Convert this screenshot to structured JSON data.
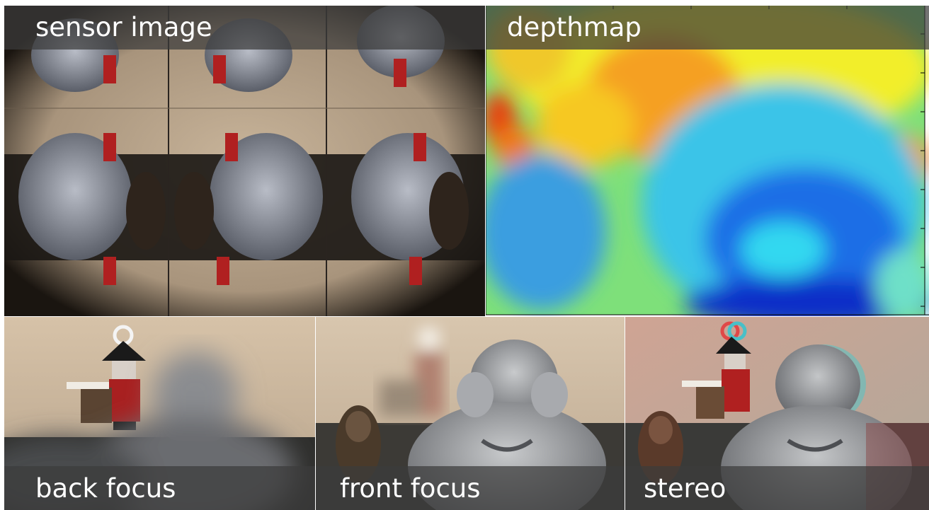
{
  "panels": {
    "sensor": {
      "label": "sensor image"
    },
    "depth": {
      "label": "depthmap"
    },
    "back": {
      "label": "back focus"
    },
    "front": {
      "label": "front focus"
    },
    "stereo": {
      "label": "stereo"
    }
  },
  "colors": {
    "caption_bar": "#3c3c3c",
    "caption_text": "#ffffff",
    "backdrop": "#c9b49a",
    "statue": "#9a9da6",
    "soldier_red": "#b02020"
  }
}
